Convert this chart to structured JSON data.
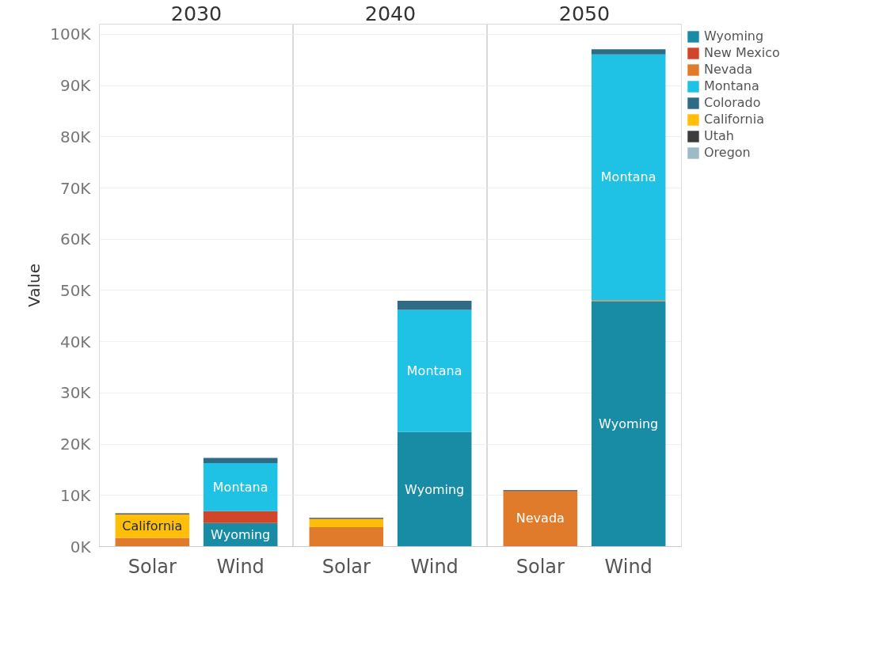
{
  "chart_data": [
    {
      "type": "bar",
      "title": "2030",
      "ylabel": "Value",
      "categories": [
        "Solar",
        "Wind"
      ],
      "stacked": true,
      "grid": "y",
      "ylim": [
        0,
        102000
      ],
      "yticks": [
        {
          "value": 0,
          "label": "0K"
        },
        {
          "value": 10000,
          "label": "10K"
        },
        {
          "value": 20000,
          "label": "20K"
        },
        {
          "value": 30000,
          "label": "30K"
        },
        {
          "value": 40000,
          "label": "40K"
        },
        {
          "value": 50000,
          "label": "50K"
        },
        {
          "value": 60000,
          "label": "60K"
        },
        {
          "value": 70000,
          "label": "70K"
        },
        {
          "value": 80000,
          "label": "80K"
        },
        {
          "value": 90000,
          "label": "90K"
        },
        {
          "value": 100000,
          "label": "100K"
        }
      ],
      "series": [
        {
          "color": "#178ca4",
          "values": [
            null,
            4600
          ]
        },
        {
          "color": "#d1462a",
          "values": [
            null,
            2300
          ]
        },
        {
          "color": "#e07b2c",
          "values": [
            1700,
            null
          ]
        },
        {
          "color": "#1fc1e4",
          "values": [
            null,
            9400
          ]
        },
        {
          "color": "#2f6b84",
          "values": [
            null,
            1000
          ]
        },
        {
          "color": "#ffbe0a",
          "values": [
            4600,
            null
          ]
        },
        {
          "color": "#3c3c3c",
          "values": [
            200,
            null
          ]
        },
        {
          "color": "#9dbac6",
          "values": [
            null,
            null
          ]
        }
      ],
      "annotations": [
        "California",
        "Wyoming",
        "Montana"
      ]
    },
    {
      "type": "bar",
      "title": "2040",
      "categories": [
        "Solar",
        "Wind"
      ],
      "stacked": true,
      "grid": "y",
      "ylim": [
        0,
        102000
      ],
      "tick_labels": "x",
      "yticks": [
        0,
        10000,
        20000,
        30000,
        40000,
        50000,
        60000,
        70000,
        80000,
        90000,
        100000
      ],
      "series": [
        {
          "color": "#178ca4",
          "values": [
            null,
            22400
          ]
        },
        {
          "color": "#d1462a",
          "values": [
            null,
            null
          ]
        },
        {
          "color": "#e07b2c",
          "values": [
            3800,
            null
          ]
        },
        {
          "color": "#1fc1e4",
          "values": [
            null,
            23800
          ]
        },
        {
          "color": "#2f6b84",
          "values": [
            null,
            1800
          ]
        },
        {
          "color": "#ffbe0a",
          "values": [
            1600,
            null
          ]
        },
        {
          "color": "#3c3c3c",
          "values": [
            200,
            null
          ]
        },
        {
          "color": "#9dbac6",
          "values": [
            null,
            null
          ]
        }
      ],
      "annotations": [
        "Wyoming",
        "Montana"
      ]
    },
    {
      "type": "bar",
      "title": "2050",
      "categories": [
        "Solar",
        "Wind"
      ],
      "stacked": true,
      "grid": "y",
      "ylim": [
        0,
        102000
      ],
      "tick_labels": "x",
      "legend": "right",
      "yticks": [
        0,
        10000,
        20000,
        30000,
        40000,
        50000,
        60000,
        70000,
        80000,
        90000,
        100000
      ],
      "series": [
        {
          "name": "Wyoming",
          "color": "#178ca4",
          "values": [
            null,
            47900
          ]
        },
        {
          "name": "New Mexico",
          "color": "#d1462a",
          "values": [
            200,
            null
          ]
        },
        {
          "name": "Nevada",
          "color": "#e07b2c",
          "values": [
            10600,
            200
          ]
        },
        {
          "name": "Montana",
          "color": "#1fc1e4",
          "values": [
            null,
            48000
          ]
        },
        {
          "name": "Colorado",
          "color": "#2f6b84",
          "values": [
            null,
            1000
          ]
        },
        {
          "name": "California",
          "color": "#ffbe0a",
          "values": [
            null,
            null
          ]
        },
        {
          "name": "Utah",
          "color": "#3c3c3c",
          "values": [
            200,
            null
          ]
        },
        {
          "name": "Oregon",
          "color": "#9dbac6",
          "values": [
            null,
            null
          ]
        }
      ],
      "annotations": [
        "Nevada",
        "Wyoming",
        "Montana"
      ]
    }
  ]
}
